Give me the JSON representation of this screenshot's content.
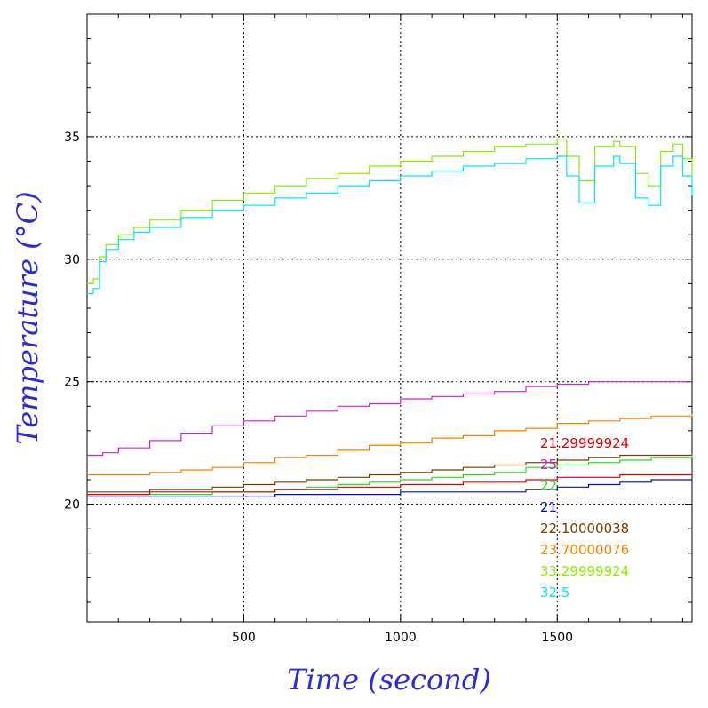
{
  "chart_data": {
    "type": "line",
    "title": "",
    "xlabel": "Time (second)",
    "ylabel": "Temperature (°C)",
    "xlim": [
      0,
      1930
    ],
    "ylim": [
      15.2,
      40
    ],
    "xticks": [
      500,
      1000,
      1500
    ],
    "yticks": [
      20,
      25,
      30,
      35
    ],
    "grid": true,
    "legend": {
      "placement": "bottom-right",
      "entries": [
        {
          "label": "21.29999924",
          "color": "#e00000"
        },
        {
          "label": "25",
          "color": "#d020d0"
        },
        {
          "label": "22",
          "color": "#20e020"
        },
        {
          "label": "21",
          "color": "#0010c0"
        },
        {
          "label": "22.10000038",
          "color": "#7a3a00"
        },
        {
          "label": "23.70000076",
          "color": "#ff8000"
        },
        {
          "label": "33.29999924",
          "color": "#88ee00"
        },
        {
          "label": "32.5",
          "color": "#00e8f0"
        }
      ]
    },
    "series": [
      {
        "color": "#88ee00",
        "x": [
          0,
          20,
          40,
          60,
          100,
          150,
          200,
          300,
          400,
          500,
          600,
          700,
          800,
          900,
          1000,
          1100,
          1200,
          1300,
          1400,
          1500,
          1530,
          1570,
          1620,
          1680,
          1700,
          1750,
          1790,
          1830,
          1870,
          1900,
          1930
        ],
        "y": [
          29.0,
          29.2,
          30.1,
          30.6,
          31.0,
          31.3,
          31.6,
          32.0,
          32.4,
          32.7,
          33.0,
          33.3,
          33.5,
          33.8,
          34.0,
          34.2,
          34.4,
          34.6,
          34.7,
          34.9,
          34.2,
          33.2,
          34.6,
          34.8,
          34.6,
          33.5,
          33.0,
          34.4,
          34.7,
          34.1,
          33.4
        ]
      },
      {
        "color": "#00e8f0",
        "x": [
          0,
          20,
          40,
          60,
          100,
          150,
          200,
          300,
          400,
          500,
          600,
          700,
          800,
          900,
          1000,
          1100,
          1200,
          1300,
          1400,
          1500,
          1530,
          1570,
          1620,
          1680,
          1700,
          1750,
          1790,
          1830,
          1870,
          1900,
          1930
        ],
        "y": [
          28.6,
          28.8,
          29.9,
          30.4,
          30.8,
          31.1,
          31.3,
          31.7,
          32.0,
          32.2,
          32.5,
          32.7,
          33.0,
          33.2,
          33.4,
          33.6,
          33.8,
          33.9,
          34.1,
          34.2,
          33.4,
          32.3,
          33.8,
          34.2,
          33.9,
          32.5,
          32.2,
          33.8,
          34.2,
          33.4,
          32.6
        ]
      },
      {
        "color": "#d020d0",
        "x": [
          0,
          50,
          100,
          200,
          300,
          400,
          500,
          600,
          700,
          800,
          900,
          1000,
          1100,
          1200,
          1300,
          1400,
          1500,
          1600,
          1700,
          1800,
          1930
        ],
        "y": [
          22.0,
          22.1,
          22.3,
          22.6,
          22.9,
          23.2,
          23.4,
          23.6,
          23.8,
          24.0,
          24.1,
          24.3,
          24.4,
          24.5,
          24.6,
          24.8,
          24.9,
          25.0,
          25.0,
          25.0,
          25.0
        ]
      },
      {
        "color": "#ff8000",
        "x": [
          0,
          100,
          200,
          300,
          400,
          500,
          600,
          700,
          800,
          900,
          1000,
          1100,
          1200,
          1300,
          1400,
          1500,
          1600,
          1700,
          1800,
          1930
        ],
        "y": [
          21.2,
          21.2,
          21.3,
          21.4,
          21.5,
          21.7,
          21.9,
          22.0,
          22.2,
          22.4,
          22.5,
          22.7,
          22.8,
          23.0,
          23.1,
          23.3,
          23.4,
          23.5,
          23.6,
          23.7
        ]
      },
      {
        "color": "#7a3a00",
        "x": [
          0,
          100,
          200,
          300,
          400,
          500,
          600,
          700,
          800,
          900,
          1000,
          1100,
          1200,
          1300,
          1400,
          1500,
          1600,
          1700,
          1800,
          1930
        ],
        "y": [
          20.5,
          20.5,
          20.6,
          20.6,
          20.7,
          20.8,
          20.9,
          21.0,
          21.1,
          21.2,
          21.3,
          21.4,
          21.5,
          21.6,
          21.7,
          21.8,
          21.9,
          22.0,
          22.0,
          22.1
        ]
      },
      {
        "color": "#20e020",
        "x": [
          0,
          100,
          200,
          300,
          400,
          500,
          600,
          700,
          800,
          900,
          1000,
          1100,
          1200,
          1300,
          1400,
          1500,
          1600,
          1700,
          1800,
          1930
        ],
        "y": [
          20.4,
          20.4,
          20.4,
          20.4,
          20.5,
          20.5,
          20.6,
          20.7,
          20.8,
          20.9,
          21.0,
          21.1,
          21.2,
          21.3,
          21.5,
          21.6,
          21.7,
          21.8,
          21.9,
          22.0
        ]
      },
      {
        "color": "#e00000",
        "x": [
          0,
          200,
          400,
          600,
          800,
          1000,
          1200,
          1400,
          1500,
          1600,
          1700,
          1800,
          1930
        ],
        "y": [
          20.4,
          20.5,
          20.5,
          20.6,
          20.7,
          20.8,
          20.9,
          21.0,
          21.1,
          21.1,
          21.2,
          21.2,
          21.3
        ]
      },
      {
        "color": "#0010c0",
        "x": [
          0,
          200,
          400,
          600,
          800,
          1000,
          1200,
          1400,
          1500,
          1600,
          1700,
          1800,
          1930
        ],
        "y": [
          20.3,
          20.3,
          20.3,
          20.4,
          20.4,
          20.5,
          20.5,
          20.6,
          20.7,
          20.8,
          20.9,
          21.0,
          21.0
        ]
      }
    ]
  }
}
